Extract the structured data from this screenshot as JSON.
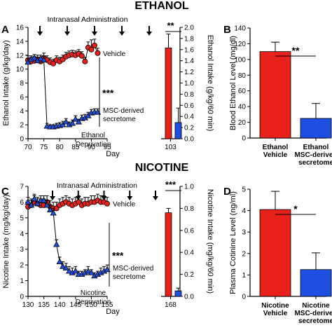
{
  "headers": {
    "top": "ETHANOL",
    "bottom": "NICOTINE"
  },
  "colors": {
    "vehicle": "#e8211b",
    "msc": "#1f4fe0"
  },
  "chart_data": [
    {
      "panel": "A",
      "type": "line",
      "annotation": "Intranasal Administration",
      "xlabel": "Day",
      "ylabel": "Ethanol Intake (g/kg/day)",
      "xlim": [
        70,
        95
      ],
      "ylim": [
        0,
        16
      ],
      "xticks": [
        "70",
        "75",
        "80",
        "85",
        "90",
        "95"
      ],
      "yticks": [
        "0",
        "2",
        "4",
        "6",
        "8",
        "10",
        "12",
        "14",
        "16"
      ],
      "arrow_days": [
        75,
        82,
        89,
        96,
        103
      ],
      "series": [
        {
          "name": "Vehicle",
          "x": [
            70,
            71,
            72,
            73,
            74,
            75,
            76,
            77,
            78,
            79,
            80,
            81,
            82,
            83,
            84,
            85,
            86,
            87,
            88,
            89,
            90,
            91,
            92
          ],
          "y": [
            11.3,
            11.1,
            11.2,
            11.4,
            11.1,
            11.6,
            11.3,
            11.0,
            10.8,
            11.3,
            11.1,
            11.4,
            11.8,
            12.0,
            12.1,
            12.0,
            12.2,
            11.9,
            11.1,
            13.1,
            12.8,
            13.4,
            12.3
          ],
          "err": [
            0.6,
            0.6,
            0.6,
            0.6,
            0.6,
            0.7,
            0.6,
            0.6,
            0.6,
            0.6,
            0.6,
            0.6,
            0.6,
            0.6,
            0.6,
            0.6,
            0.6,
            0.6,
            0.6,
            0.8,
            1.4,
            0.9,
            0.7
          ]
        },
        {
          "name": "MSC-derived secretome",
          "x": [
            70,
            71,
            72,
            73,
            74,
            75,
            76,
            77,
            78,
            79,
            80,
            81,
            82,
            83,
            84,
            85,
            86,
            87,
            88,
            89,
            90,
            91,
            92
          ],
          "y": [
            11.0,
            11.4,
            11.6,
            11.2,
            11.5,
            11.3,
            1.8,
            1.7,
            1.7,
            1.8,
            1.9,
            2.0,
            2.4,
            2.0,
            2.2,
            2.8,
            2.4,
            2.9,
            3.0,
            3.3,
            3.7,
            3.8,
            3.8
          ],
          "err": [
            0.5,
            0.5,
            0.5,
            0.5,
            0.5,
            0.5,
            0.4,
            0.3,
            0.3,
            0.4,
            0.4,
            0.5,
            0.5,
            0.4,
            0.5,
            0.5,
            0.4,
            0.5,
            0.5,
            0.5,
            0.5,
            0.5,
            0.5
          ]
        }
      ],
      "legend_labels": [
        "Vehicle",
        "MSC-derived",
        "secretome"
      ],
      "significance": "***",
      "deprivation_label": [
        "Ethanol",
        "Deprivation"
      ],
      "deprivation": {
        "category": "103",
        "y2label": "Ethanol Intake (g/kg/60 min)",
        "y2lim": [
          0,
          2.0
        ],
        "y2ticks": [
          "0.0",
          "0.2",
          "0.4",
          "0.6",
          "0.8",
          "1.0",
          "1.2",
          "1.4",
          "1.6",
          "1.8",
          "2.0"
        ],
        "values": [
          1.63,
          0.29
        ],
        "err": [
          0.25,
          0.26
        ],
        "significance": "**"
      }
    },
    {
      "panel": "B",
      "type": "bar",
      "ylabel": "Blood Ethanol Level (mg/dl)",
      "ylim": [
        0,
        140
      ],
      "yticks": [
        "0",
        "20",
        "40",
        "60",
        "80",
        "100",
        "120",
        "140"
      ],
      "categories": [
        [
          "Ethanol",
          "Vehicle"
        ],
        [
          "Ethanol",
          "MSC-derived",
          "secretome"
        ]
      ],
      "values": [
        110,
        25
      ],
      "err": [
        12,
        19
      ],
      "significance": "**"
    },
    {
      "panel": "C",
      "type": "line",
      "annotation": "Intranasal Administration",
      "xlabel": "Day",
      "ylabel": "Nicotine Intake (mg/kg/day)",
      "xlim": [
        130,
        155
      ],
      "ylim": [
        0,
        7
      ],
      "xticks": [
        "130",
        "135",
        "140",
        "145",
        "150",
        "155"
      ],
      "yticks": [
        "0",
        "1",
        "2",
        "3",
        "4",
        "5",
        "6",
        "7"
      ],
      "arrow_days": [
        140,
        147,
        154,
        161,
        168
      ],
      "series": [
        {
          "name": "Vehicle",
          "x": [
            130,
            131,
            132,
            133,
            134,
            135,
            136,
            137,
            138,
            139,
            140,
            141,
            142,
            143,
            144,
            145,
            146,
            147,
            148,
            149,
            150,
            151,
            152,
            153,
            154,
            155
          ],
          "y": [
            5.7,
            5.8,
            6.0,
            5.9,
            5.8,
            5.8,
            6.0,
            5.7,
            5.6,
            5.6,
            5.8,
            5.9,
            6.0,
            5.9,
            5.8,
            5.9,
            6.0,
            5.8,
            5.9,
            5.9,
            6.0,
            6.0,
            6.1,
            6.0,
            6.0,
            5.9
          ],
          "err": [
            0.4,
            0.4,
            0.4,
            0.4,
            0.4,
            0.4,
            0.4,
            0.4,
            0.4,
            0.4,
            0.4,
            0.4,
            0.4,
            0.4,
            0.4,
            0.4,
            0.4,
            0.4,
            0.4,
            0.4,
            0.4,
            0.4,
            0.4,
            0.4,
            0.4,
            0.4
          ]
        },
        {
          "name": "MSC-derived secretome",
          "x": [
            130,
            131,
            132,
            133,
            134,
            135,
            136,
            137,
            138,
            139,
            140,
            141,
            142,
            143,
            144,
            145,
            146,
            147,
            148,
            149,
            150,
            151,
            152,
            153,
            154,
            155
          ],
          "y": [
            6.0,
            5.8,
            6.2,
            5.9,
            6.1,
            6.1,
            5.8,
            5.5,
            5.3,
            3.3,
            2.2,
            1.9,
            1.8,
            1.6,
            1.5,
            1.6,
            1.4,
            1.4,
            1.5,
            1.6,
            1.5,
            1.3,
            1.4,
            1.5,
            1.6,
            1.7
          ],
          "err": [
            0.3,
            0.3,
            0.3,
            0.3,
            0.3,
            0.3,
            0.3,
            0.3,
            0.3,
            0.3,
            0.3,
            0.3,
            0.3,
            0.3,
            0.3,
            0.3,
            0.2,
            0.2,
            0.2,
            0.3,
            0.2,
            0.2,
            0.2,
            0.3,
            0.3,
            0.3
          ]
        }
      ],
      "legend_labels": [
        "Vehicle",
        "MSC-derived",
        "secretome"
      ],
      "significance": "***",
      "deprivation_label": [
        "Nicotine",
        "Deprivation"
      ],
      "deprivation": {
        "category": "168",
        "y2label": "Nicotine Intake (mg/kg/60 min)",
        "y2lim": [
          0,
          1.0
        ],
        "y2ticks": [
          "0.0",
          "0.2",
          "0.4",
          "0.6",
          "0.8",
          "1.0"
        ],
        "values": [
          0.76,
          0.05
        ],
        "err": [
          0.04,
          0.025
        ],
        "significance": "***"
      }
    },
    {
      "panel": "D",
      "type": "bar",
      "ylabel": "Plasma Cotinine Level (ng/ml)",
      "ylim": [
        0,
        5
      ],
      "yticks": [
        "0",
        "1",
        "2",
        "3",
        "4",
        "5"
      ],
      "categories": [
        [
          "Nicotine",
          "Vehicle"
        ],
        [
          "Nicotine",
          "MSC-derived",
          "secretome"
        ]
      ],
      "values": [
        4.05,
        1.25
      ],
      "err": [
        0.85,
        0.78
      ],
      "significance": "*"
    }
  ]
}
